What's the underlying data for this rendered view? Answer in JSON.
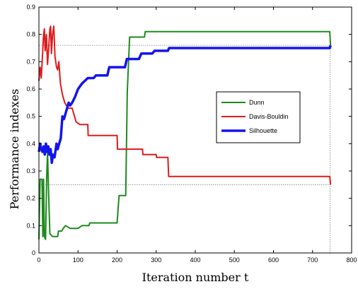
{
  "chart_data": {
    "type": "line",
    "xlabel": "Iteration number t",
    "ylabel": "Performance indexes",
    "xlim": [
      0,
      800
    ],
    "ylim": [
      0,
      0.9
    ],
    "xticks": [
      0,
      100,
      200,
      300,
      400,
      500,
      600,
      700,
      800
    ],
    "yticks": [
      0,
      0.1,
      0.2,
      0.3,
      0.4,
      0.5,
      0.6,
      0.7,
      0.8,
      0.9
    ],
    "xtick_labels": [
      "0",
      "100",
      "200",
      "300",
      "400",
      "500",
      "600",
      "700",
      "800"
    ],
    "ytick_labels": [
      "0",
      "0.1",
      "0.2",
      "0.3",
      "0.4",
      "0.5",
      "0.6",
      "0.7",
      "0.8",
      "0.9"
    ],
    "grid": false,
    "legend_position": "center-right",
    "reference_lines": [
      {
        "orientation": "horizontal",
        "y": 0.76,
        "x_end": 745
      },
      {
        "orientation": "horizontal",
        "y": 0.25,
        "x_end": 745
      },
      {
        "orientation": "vertical",
        "x": 745,
        "y_end": 0.76
      }
    ],
    "series": [
      {
        "name": "Dunn",
        "color": "#1e8a1e",
        "points": [
          [
            0,
            0.05
          ],
          [
            3,
            0.27
          ],
          [
            8,
            0.27
          ],
          [
            10,
            0.06
          ],
          [
            12,
            0.27
          ],
          [
            14,
            0.06
          ],
          [
            17,
            0.05
          ],
          [
            20,
            0.28
          ],
          [
            22,
            0.37
          ],
          [
            25,
            0.21
          ],
          [
            28,
            0.07
          ],
          [
            35,
            0.06
          ],
          [
            48,
            0.06
          ],
          [
            50,
            0.08
          ],
          [
            58,
            0.08
          ],
          [
            62,
            0.09
          ],
          [
            68,
            0.1
          ],
          [
            80,
            0.09
          ],
          [
            100,
            0.09
          ],
          [
            110,
            0.1
          ],
          [
            128,
            0.1
          ],
          [
            130,
            0.11
          ],
          [
            200,
            0.11
          ],
          [
            205,
            0.21
          ],
          [
            222,
            0.21
          ],
          [
            226,
            0.59
          ],
          [
            232,
            0.79
          ],
          [
            270,
            0.79
          ],
          [
            272,
            0.81
          ],
          [
            744,
            0.81
          ],
          [
            746,
            0.76
          ]
        ]
      },
      {
        "name": "Davis-Bouldin",
        "color": "#e01b1b",
        "points": [
          [
            0,
            0.63
          ],
          [
            3,
            0.68
          ],
          [
            6,
            0.64
          ],
          [
            9,
            0.72
          ],
          [
            12,
            0.8
          ],
          [
            14,
            0.82
          ],
          [
            16,
            0.74
          ],
          [
            19,
            0.8
          ],
          [
            22,
            0.69
          ],
          [
            25,
            0.75
          ],
          [
            28,
            0.82
          ],
          [
            30,
            0.83
          ],
          [
            32,
            0.73
          ],
          [
            35,
            0.8
          ],
          [
            38,
            0.83
          ],
          [
            41,
            0.72
          ],
          [
            45,
            0.68
          ],
          [
            48,
            0.67
          ],
          [
            51,
            0.7
          ],
          [
            55,
            0.62
          ],
          [
            60,
            0.58
          ],
          [
            66,
            0.55
          ],
          [
            75,
            0.53
          ],
          [
            85,
            0.53
          ],
          [
            95,
            0.48
          ],
          [
            105,
            0.47
          ],
          [
            125,
            0.47
          ],
          [
            126,
            0.43
          ],
          [
            160,
            0.43
          ],
          [
            200,
            0.43
          ],
          [
            201,
            0.38
          ],
          [
            265,
            0.38
          ],
          [
            266,
            0.36
          ],
          [
            300,
            0.36
          ],
          [
            301,
            0.35
          ],
          [
            330,
            0.35
          ],
          [
            332,
            0.28
          ],
          [
            744,
            0.28
          ],
          [
            746,
            0.25
          ]
        ]
      },
      {
        "name": "Silhouette",
        "color": "#1414ee",
        "points": [
          [
            0,
            0.37
          ],
          [
            3,
            0.4
          ],
          [
            6,
            0.38
          ],
          [
            9,
            0.37
          ],
          [
            12,
            0.39
          ],
          [
            15,
            0.36
          ],
          [
            18,
            0.4
          ],
          [
            21,
            0.37
          ],
          [
            24,
            0.39
          ],
          [
            27,
            0.36
          ],
          [
            30,
            0.38
          ],
          [
            33,
            0.33
          ],
          [
            36,
            0.36
          ],
          [
            40,
            0.35
          ],
          [
            45,
            0.4
          ],
          [
            48,
            0.38
          ],
          [
            52,
            0.4
          ],
          [
            56,
            0.42
          ],
          [
            60,
            0.5
          ],
          [
            64,
            0.49
          ],
          [
            68,
            0.51
          ],
          [
            72,
            0.53
          ],
          [
            76,
            0.55
          ],
          [
            80,
            0.54
          ],
          [
            85,
            0.55
          ],
          [
            92,
            0.57
          ],
          [
            100,
            0.6
          ],
          [
            110,
            0.62
          ],
          [
            125,
            0.64
          ],
          [
            140,
            0.64
          ],
          [
            146,
            0.65
          ],
          [
            175,
            0.65
          ],
          [
            180,
            0.68
          ],
          [
            220,
            0.68
          ],
          [
            225,
            0.71
          ],
          [
            256,
            0.71
          ],
          [
            262,
            0.73
          ],
          [
            290,
            0.73
          ],
          [
            296,
            0.74
          ],
          [
            330,
            0.74
          ],
          [
            333,
            0.75
          ],
          [
            744,
            0.75
          ],
          [
            746,
            0.76
          ]
        ]
      }
    ]
  },
  "colors": {
    "axis": "#000000",
    "reference": "#7f7f7f"
  }
}
